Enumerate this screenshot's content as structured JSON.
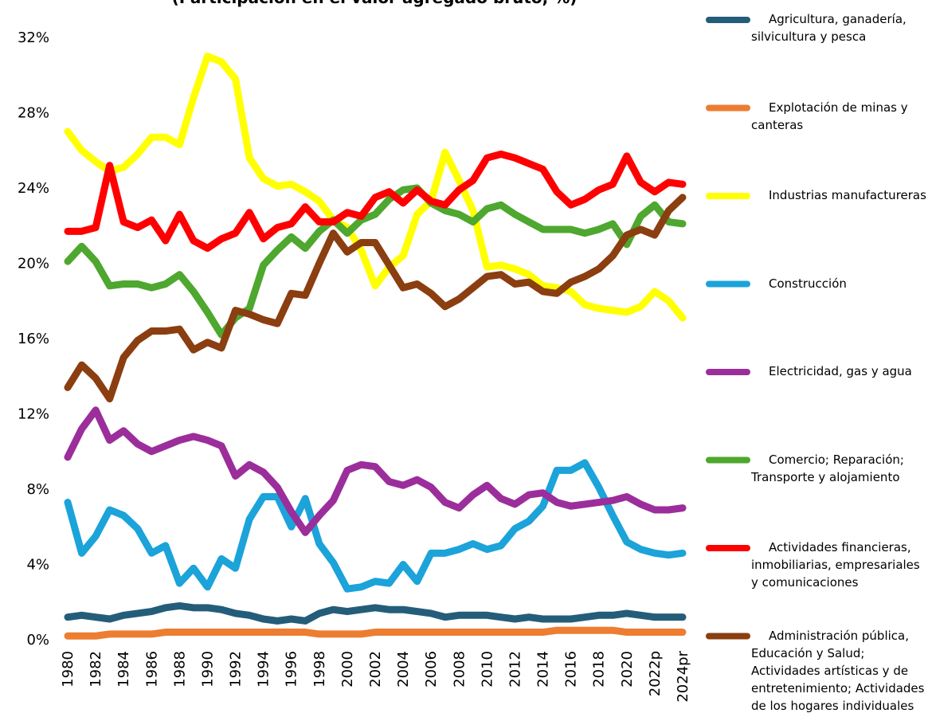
{
  "chart_data": {
    "type": "line",
    "title": "(Participación en el valor agregado bruto, %)",
    "categories": [
      "1980",
      null,
      "1982",
      null,
      "1984",
      null,
      "1986",
      null,
      "1988",
      null,
      "1990",
      null,
      "1992",
      null,
      "1994",
      null,
      "1996",
      null,
      "1998",
      null,
      "2000",
      null,
      "2002",
      null,
      "2004",
      null,
      "2006",
      null,
      "2008",
      null,
      "2010",
      null,
      "2012",
      null,
      "2014",
      null,
      "2016",
      null,
      "2018",
      null,
      "2020",
      null,
      "2022p",
      null,
      "2024pr"
    ],
    "ylim": [
      0,
      33
    ],
    "yticks": [
      {
        "value": 0,
        "label": "0%"
      },
      {
        "value": 4,
        "label": "4%"
      },
      {
        "value": 8,
        "label": "8%"
      },
      {
        "value": 12,
        "label": "12%"
      },
      {
        "value": 16,
        "label": "16%"
      },
      {
        "value": 20,
        "label": "20%"
      },
      {
        "value": 24,
        "label": "24%"
      },
      {
        "value": 28,
        "label": "28%"
      },
      {
        "value": 32,
        "label": "32%"
      }
    ],
    "grid": false,
    "legend": "right",
    "series": [
      {
        "name": "Agricultura, ganadería, silvicultura y pesca",
        "color": "#245d7a",
        "values": [
          1.2,
          1.3,
          1.2,
          1.1,
          1.3,
          1.4,
          1.5,
          1.7,
          1.8,
          1.7,
          1.7,
          1.6,
          1.4,
          1.3,
          1.1,
          1.0,
          1.1,
          1.0,
          1.4,
          1.6,
          1.5,
          1.6,
          1.7,
          1.6,
          1.6,
          1.5,
          1.4,
          1.2,
          1.3,
          1.3,
          1.3,
          1.2,
          1.1,
          1.2,
          1.1,
          1.1,
          1.1,
          1.2,
          1.3,
          1.3,
          1.4,
          1.3,
          1.2,
          1.2,
          1.2
        ]
      },
      {
        "name": "Explotación de minas y canteras",
        "color": "#ed7d31",
        "values": [
          0.2,
          0.2,
          0.2,
          0.3,
          0.3,
          0.3,
          0.3,
          0.4,
          0.4,
          0.4,
          0.4,
          0.4,
          0.4,
          0.4,
          0.4,
          0.4,
          0.4,
          0.4,
          0.3,
          0.3,
          0.3,
          0.3,
          0.4,
          0.4,
          0.4,
          0.4,
          0.4,
          0.4,
          0.4,
          0.4,
          0.4,
          0.4,
          0.4,
          0.4,
          0.4,
          0.5,
          0.5,
          0.5,
          0.5,
          0.5,
          0.4,
          0.4,
          0.4,
          0.4,
          0.4
        ]
      },
      {
        "name": "Industrias manufactureras",
        "color": "#ffff00",
        "values": [
          27.0,
          26.0,
          25.4,
          24.9,
          25.1,
          25.8,
          26.7,
          26.7,
          26.3,
          28.8,
          31.0,
          30.7,
          29.8,
          25.6,
          24.5,
          24.1,
          24.2,
          23.8,
          23.3,
          22.3,
          21.9,
          20.7,
          18.8,
          19.8,
          20.4,
          22.6,
          23.3,
          25.9,
          24.4,
          22.8,
          19.8,
          19.9,
          19.7,
          19.4,
          18.8,
          18.7,
          18.5,
          17.8,
          17.6,
          17.5,
          17.4,
          17.7,
          18.5,
          18.0,
          17.1
        ]
      },
      {
        "name": "Construcción",
        "color": "#1ba3da",
        "values": [
          7.3,
          4.6,
          5.5,
          6.9,
          6.6,
          5.9,
          4.6,
          5.0,
          3.0,
          3.8,
          2.8,
          4.3,
          3.8,
          6.4,
          7.6,
          7.6,
          6.0,
          7.5,
          5.1,
          4.1,
          2.7,
          2.8,
          3.1,
          3.0,
          4.0,
          3.1,
          4.6,
          4.6,
          4.8,
          5.1,
          4.8,
          5.0,
          5.9,
          6.3,
          7.1,
          9.0,
          9.0,
          9.4,
          8.1,
          6.6,
          5.2,
          4.8,
          4.6,
          4.5,
          4.6
        ]
      },
      {
        "name": "Electricidad, gas y agua",
        "color": "#9b2e9b",
        "values": [
          9.7,
          11.2,
          12.2,
          10.6,
          11.1,
          10.4,
          10.0,
          10.3,
          10.6,
          10.8,
          10.6,
          10.3,
          8.7,
          9.3,
          8.9,
          8.1,
          6.8,
          5.7,
          6.6,
          7.4,
          9.0,
          9.3,
          9.2,
          8.4,
          8.2,
          8.5,
          8.1,
          7.3,
          7.0,
          7.7,
          8.2,
          7.5,
          7.2,
          7.7,
          7.8,
          7.3,
          7.1,
          7.2,
          7.3,
          7.4,
          7.6,
          7.2,
          6.9,
          6.9,
          7.0
        ]
      },
      {
        "name": "Comercio; Reparación; Transporte y alojamiento",
        "color": "#4ea72e",
        "values": [
          20.1,
          20.9,
          20.1,
          18.8,
          18.9,
          18.9,
          18.7,
          18.9,
          19.4,
          18.5,
          17.4,
          16.2,
          17.1,
          17.6,
          19.9,
          20.7,
          21.4,
          20.8,
          21.7,
          22.3,
          21.6,
          22.3,
          22.6,
          23.4,
          23.9,
          24.0,
          23.2,
          22.8,
          22.6,
          22.2,
          22.9,
          23.1,
          22.6,
          22.2,
          21.8,
          21.8,
          21.8,
          21.6,
          21.8,
          22.1,
          21.0,
          22.5,
          23.1,
          22.2,
          22.1
        ]
      },
      {
        "name": "Actividades financieras, inmobiliarias, empresariales y comunicaciones",
        "color": "#ff0000",
        "values": [
          21.7,
          21.7,
          21.9,
          25.2,
          22.2,
          21.9,
          22.3,
          21.2,
          22.6,
          21.2,
          20.8,
          21.3,
          21.6,
          22.7,
          21.3,
          21.9,
          22.1,
          23.0,
          22.2,
          22.2,
          22.7,
          22.5,
          23.5,
          23.8,
          23.2,
          23.9,
          23.3,
          23.1,
          23.9,
          24.4,
          25.6,
          25.8,
          25.6,
          25.3,
          25.0,
          23.8,
          23.1,
          23.4,
          23.9,
          24.2,
          25.7,
          24.3,
          23.8,
          24.3,
          24.2
        ]
      },
      {
        "name": "Administración pública, Educación y Salud; Actividades artísticas y de entretenimiento; Actividades de los hogares individuales",
        "color": "#8b3e10",
        "values": [
          13.4,
          14.6,
          13.9,
          12.8,
          15.0,
          15.9,
          16.4,
          16.4,
          16.5,
          15.4,
          15.8,
          15.5,
          17.5,
          17.3,
          17.0,
          16.8,
          18.4,
          18.3,
          20.0,
          21.6,
          20.6,
          21.1,
          21.1,
          19.9,
          18.7,
          18.9,
          18.4,
          17.7,
          18.1,
          18.7,
          19.3,
          19.4,
          18.9,
          19.0,
          18.5,
          18.4,
          19.0,
          19.3,
          19.7,
          20.4,
          21.5,
          21.8,
          21.5,
          22.8,
          23.5
        ]
      }
    ]
  }
}
